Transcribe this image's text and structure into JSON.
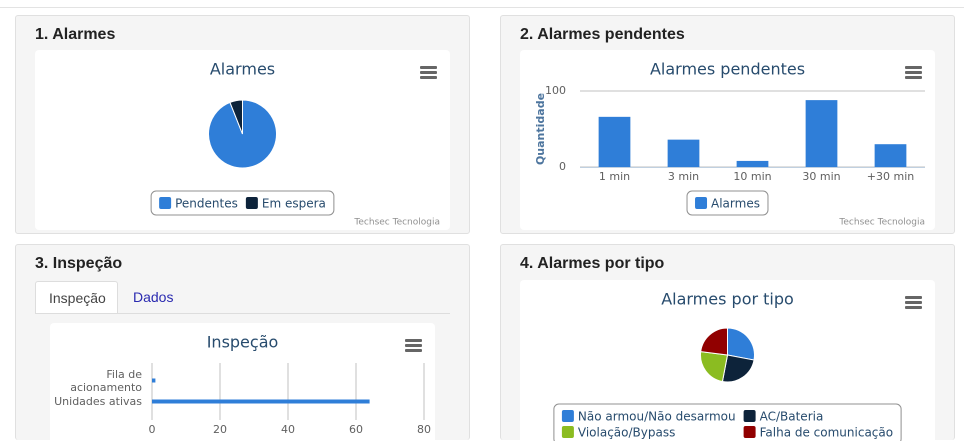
{
  "panels": [
    {
      "title": "1. Alarmes"
    },
    {
      "title": "2. Alarmes pendentes"
    },
    {
      "title": "3. Inspeção"
    },
    {
      "title": "4. Alarmes por tipo"
    }
  ],
  "tabs": [
    "Inspeção",
    "Dados"
  ],
  "credits": "Techsec Tecnologia",
  "chart_data": [
    {
      "type": "pie",
      "title": "Alarmes",
      "categories": [
        "Pendentes",
        "Em espera"
      ],
      "values": [
        94,
        6
      ],
      "colors": [
        "#2f7ed8",
        "#0d233a"
      ],
      "legend": "bottom"
    },
    {
      "type": "bar",
      "title": "Alarmes pendentes",
      "categories": [
        "1 min",
        "3 min",
        "10 min",
        "30 min",
        "+30 min"
      ],
      "series": [
        {
          "name": "Alarmes",
          "color": "#2f7ed8",
          "values": [
            66,
            36,
            8,
            88,
            30
          ]
        }
      ],
      "ylabel": "Quantidade",
      "ylim": [
        0,
        100
      ],
      "yticks": [
        0,
        100
      ],
      "grid": true,
      "legend": "bottom"
    },
    {
      "type": "hbar",
      "title": "Inspeção",
      "categories": [
        "Fila de acionamento",
        "Unidades ativas"
      ],
      "values": [
        1,
        64
      ],
      "color": "#2f7ed8",
      "xlim": [
        0,
        80
      ],
      "xticks": [
        0,
        20,
        40,
        60,
        80
      ],
      "grid": true
    },
    {
      "type": "pie",
      "title": "Alarmes por tipo",
      "categories": [
        "Não armou/Não desarmou",
        "AC/Bateria",
        "Violação/Bypass",
        "Falha de comunicação"
      ],
      "values": [
        28,
        25,
        24,
        23
      ],
      "colors": [
        "#2f7ed8",
        "#0d233a",
        "#8bbc21",
        "#910000"
      ],
      "legend": "bottom"
    }
  ]
}
